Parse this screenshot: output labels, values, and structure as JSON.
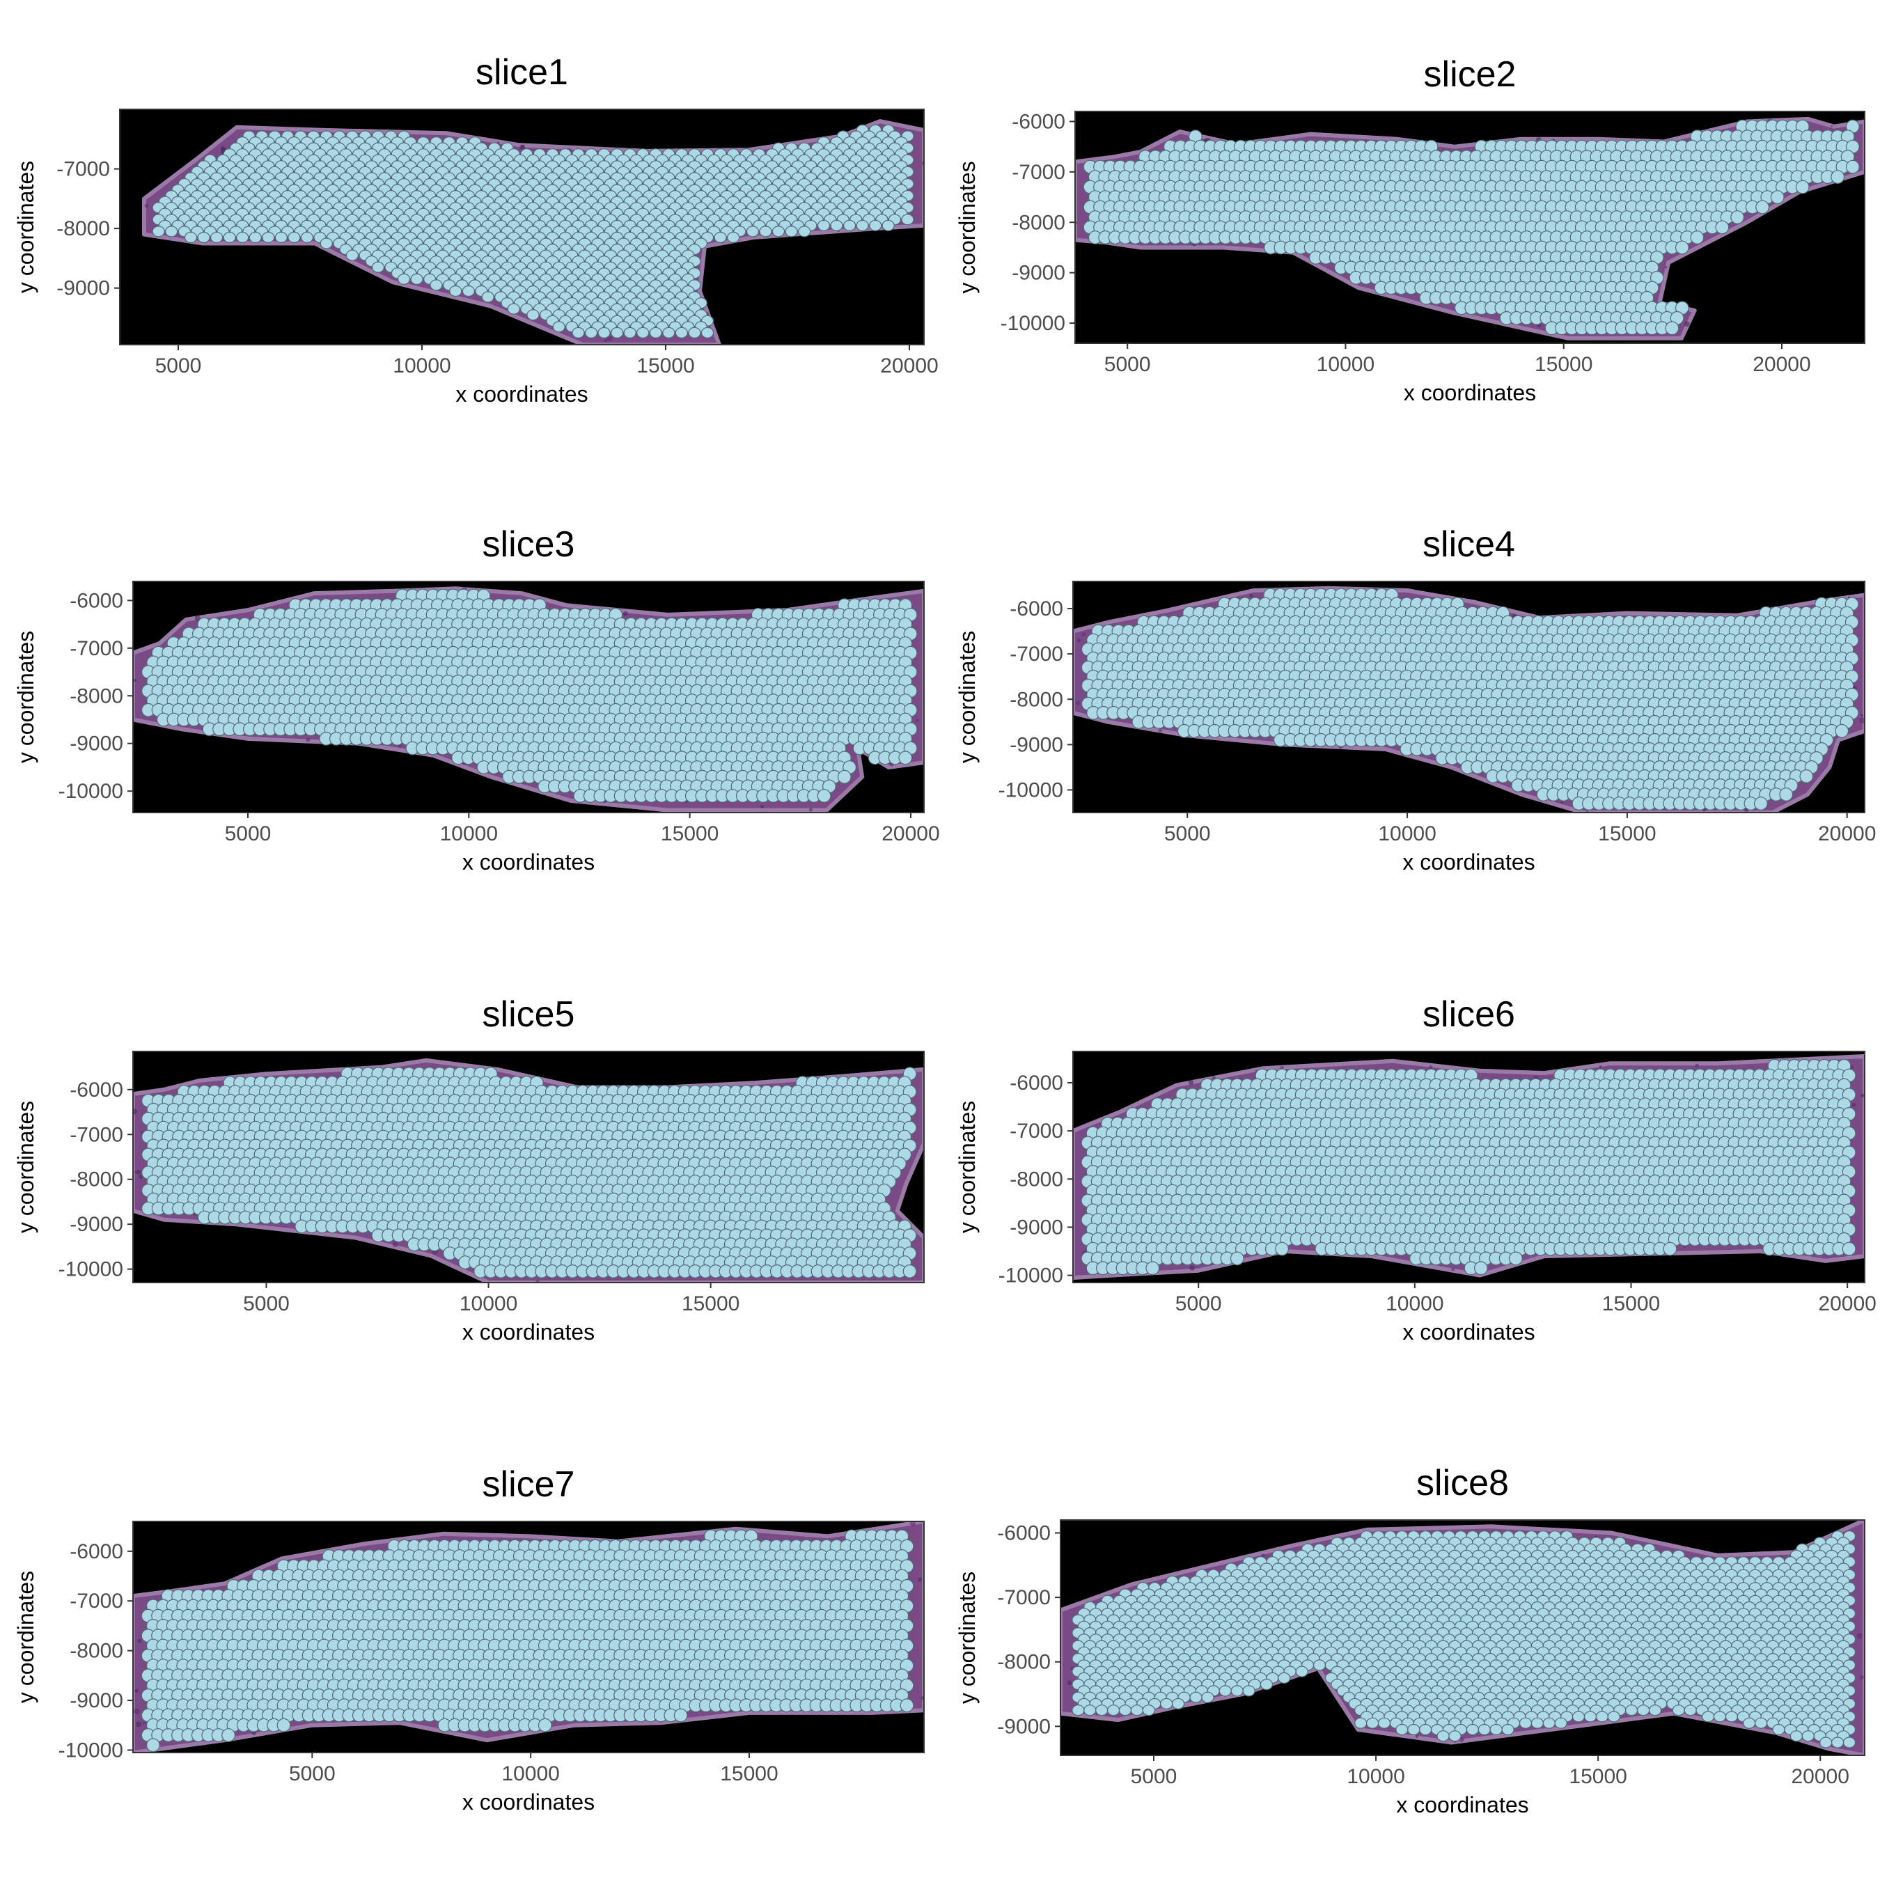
{
  "figure": {
    "background": "#ffffff",
    "panel_background": "#000000",
    "tissue_colors": [
      "#5b2d6e",
      "#7a4a86",
      "#9c7aa8",
      "#4a2a5c"
    ],
    "spot_fill": "#add8e6",
    "spot_stroke": "#4f6b75"
  },
  "chart_data": [
    {
      "type": "scatter",
      "title": "slice1",
      "xlabel": "x coordinates",
      "ylabel": "y coordinates",
      "xlim": [
        3800,
        20300
      ],
      "ylim": [
        -9950,
        -6000
      ],
      "xticks": [
        5000,
        10000,
        15000,
        20000
      ],
      "yticks": [
        -9000,
        -8000,
        -7000
      ],
      "grid": false,
      "legend": "none",
      "spot_pattern": "rows",
      "outline": [
        [
          4300,
          -7500
        ],
        [
          5400,
          -6820
        ],
        [
          6200,
          -6300
        ],
        [
          8000,
          -6350
        ],
        [
          10500,
          -6400
        ],
        [
          12000,
          -6600
        ],
        [
          14600,
          -6700
        ],
        [
          16700,
          -6680
        ],
        [
          18600,
          -6450
        ],
        [
          19400,
          -6200
        ],
        [
          20300,
          -6350
        ],
        [
          20300,
          -7950
        ],
        [
          19300,
          -8000
        ],
        [
          16800,
          -8150
        ],
        [
          15800,
          -8300
        ],
        [
          15700,
          -9050
        ],
        [
          16100,
          -9950
        ],
        [
          13300,
          -9950
        ],
        [
          11400,
          -9300
        ],
        [
          9400,
          -8900
        ],
        [
          7800,
          -8250
        ],
        [
          5500,
          -8250
        ],
        [
          4300,
          -8100
        ]
      ]
    },
    {
      "type": "scatter",
      "title": "slice2",
      "xlabel": "x coordinates",
      "ylabel": "y coordinates",
      "xlim": [
        3800,
        21900
      ],
      "ylim": [
        -10400,
        -5800
      ],
      "xticks": [
        5000,
        10000,
        15000,
        20000
      ],
      "yticks": [
        -10000,
        -9000,
        -8000,
        -7000,
        -6000
      ],
      "grid": false,
      "legend": "none",
      "spot_pattern": "hex",
      "outline": [
        [
          3800,
          -6800
        ],
        [
          4700,
          -6700
        ],
        [
          5300,
          -6600
        ],
        [
          6200,
          -6200
        ],
        [
          7500,
          -6450
        ],
        [
          9200,
          -6250
        ],
        [
          11200,
          -6350
        ],
        [
          12500,
          -6500
        ],
        [
          14000,
          -6350
        ],
        [
          15800,
          -6350
        ],
        [
          17300,
          -6400
        ],
        [
          19200,
          -6000
        ],
        [
          20600,
          -5950
        ],
        [
          21200,
          -6100
        ],
        [
          21900,
          -6000
        ],
        [
          21900,
          -7000
        ],
        [
          20400,
          -7400
        ],
        [
          19200,
          -8000
        ],
        [
          17400,
          -8800
        ],
        [
          17200,
          -9600
        ],
        [
          18000,
          -9750
        ],
        [
          17700,
          -10300
        ],
        [
          15100,
          -10300
        ],
        [
          12500,
          -9800
        ],
        [
          10300,
          -9300
        ],
        [
          8800,
          -8600
        ],
        [
          7200,
          -8500
        ],
        [
          5300,
          -8500
        ],
        [
          4500,
          -8400
        ],
        [
          3800,
          -8350
        ]
      ]
    },
    {
      "type": "scatter",
      "title": "slice3",
      "xlabel": "x coordinates",
      "ylabel": "y coordinates",
      "xlim": [
        2400,
        20300
      ],
      "ylim": [
        -10450,
        -5600
      ],
      "xticks": [
        5000,
        10000,
        15000,
        20000
      ],
      "yticks": [
        -10000,
        -9000,
        -8000,
        -7000,
        -6000
      ],
      "grid": false,
      "legend": "none",
      "spot_pattern": "hex",
      "outline": [
        [
          2400,
          -7100
        ],
        [
          3000,
          -6900
        ],
        [
          3600,
          -6400
        ],
        [
          5000,
          -6200
        ],
        [
          6500,
          -5850
        ],
        [
          8300,
          -5800
        ],
        [
          9700,
          -5750
        ],
        [
          11200,
          -5850
        ],
        [
          12200,
          -6100
        ],
        [
          14500,
          -6300
        ],
        [
          17200,
          -6200
        ],
        [
          19100,
          -5950
        ],
        [
          20300,
          -5800
        ],
        [
          20300,
          -9400
        ],
        [
          19500,
          -9500
        ],
        [
          18800,
          -9100
        ],
        [
          18900,
          -9700
        ],
        [
          18100,
          -10400
        ],
        [
          14500,
          -10400
        ],
        [
          12300,
          -10200
        ],
        [
          10500,
          -9700
        ],
        [
          9200,
          -9250
        ],
        [
          7500,
          -9000
        ],
        [
          5000,
          -8900
        ],
        [
          3500,
          -8700
        ],
        [
          2400,
          -8500
        ]
      ]
    },
    {
      "type": "scatter",
      "title": "slice4",
      "xlabel": "x coordinates",
      "ylabel": "y coordinates",
      "xlim": [
        2400,
        20400
      ],
      "ylim": [
        -10500,
        -5400
      ],
      "xticks": [
        5000,
        10000,
        15000,
        20000
      ],
      "yticks": [
        -10000,
        -9000,
        -8000,
        -7000,
        -6000
      ],
      "grid": false,
      "legend": "none",
      "spot_pattern": "hex",
      "outline": [
        [
          2400,
          -6500
        ],
        [
          3200,
          -6300
        ],
        [
          4500,
          -6050
        ],
        [
          6500,
          -5600
        ],
        [
          8200,
          -5550
        ],
        [
          10000,
          -5600
        ],
        [
          11500,
          -5850
        ],
        [
          13000,
          -6200
        ],
        [
          15000,
          -6100
        ],
        [
          17500,
          -6150
        ],
        [
          19300,
          -5850
        ],
        [
          20400,
          -5700
        ],
        [
          20400,
          -8700
        ],
        [
          19800,
          -8900
        ],
        [
          19600,
          -9500
        ],
        [
          19100,
          -10100
        ],
        [
          18300,
          -10500
        ],
        [
          14000,
          -10500
        ],
        [
          12600,
          -10100
        ],
        [
          11000,
          -9500
        ],
        [
          9500,
          -9100
        ],
        [
          7200,
          -9000
        ],
        [
          5000,
          -8800
        ],
        [
          3200,
          -8500
        ],
        [
          2400,
          -8300
        ]
      ]
    },
    {
      "type": "scatter",
      "title": "slice5",
      "xlabel": "x coordinates",
      "ylabel": "y coordinates",
      "xlim": [
        2000,
        19800
      ],
      "ylim": [
        -10300,
        -5150
      ],
      "xticks": [
        5000,
        10000,
        15000
      ],
      "yticks": [
        -10000,
        -9000,
        -8000,
        -7000,
        -6000
      ],
      "grid": false,
      "legend": "none",
      "spot_pattern": "hex",
      "outline": [
        [
          2000,
          -6100
        ],
        [
          2700,
          -6000
        ],
        [
          3500,
          -5800
        ],
        [
          5000,
          -5650
        ],
        [
          7600,
          -5500
        ],
        [
          8600,
          -5350
        ],
        [
          10200,
          -5550
        ],
        [
          12000,
          -5950
        ],
        [
          14000,
          -5950
        ],
        [
          16000,
          -5850
        ],
        [
          18000,
          -5700
        ],
        [
          19800,
          -5550
        ],
        [
          19800,
          -7200
        ],
        [
          19400,
          -8100
        ],
        [
          19200,
          -8700
        ],
        [
          19800,
          -9300
        ],
        [
          19800,
          -10300
        ],
        [
          10000,
          -10300
        ],
        [
          8700,
          -9700
        ],
        [
          7000,
          -9300
        ],
        [
          4300,
          -9000
        ],
        [
          2700,
          -8900
        ],
        [
          2000,
          -8700
        ]
      ]
    },
    {
      "type": "scatter",
      "title": "slice6",
      "xlabel": "x coordinates",
      "ylabel": "y coordinates",
      "xlim": [
        2100,
        20400
      ],
      "ylim": [
        -10150,
        -5350
      ],
      "xticks": [
        5000,
        10000,
        15000,
        20000
      ],
      "yticks": [
        -10000,
        -9000,
        -8000,
        -7000,
        -6000
      ],
      "grid": false,
      "legend": "none",
      "spot_pattern": "hex",
      "outline": [
        [
          2100,
          -7000
        ],
        [
          3200,
          -6600
        ],
        [
          4500,
          -6050
        ],
        [
          6500,
          -5700
        ],
        [
          9500,
          -5550
        ],
        [
          11500,
          -5750
        ],
        [
          13000,
          -5800
        ],
        [
          14500,
          -5600
        ],
        [
          17000,
          -5600
        ],
        [
          20400,
          -5450
        ],
        [
          20400,
          -9600
        ],
        [
          19500,
          -9700
        ],
        [
          18000,
          -9500
        ],
        [
          13000,
          -9600
        ],
        [
          11500,
          -10000
        ],
        [
          9000,
          -9600
        ],
        [
          7000,
          -9500
        ],
        [
          5000,
          -9900
        ],
        [
          3000,
          -10000
        ],
        [
          2100,
          -10050
        ]
      ]
    },
    {
      "type": "scatter",
      "title": "slice7",
      "xlabel": "x coordinates",
      "ylabel": "y coordinates",
      "xlim": [
        900,
        19000
      ],
      "ylim": [
        -10050,
        -5400
      ],
      "xticks": [
        5000,
        10000,
        15000
      ],
      "yticks": [
        -10000,
        -9000,
        -8000,
        -7000,
        -6000
      ],
      "grid": false,
      "legend": "none",
      "spot_pattern": "hex",
      "outline": [
        [
          900,
          -6900
        ],
        [
          1800,
          -6800
        ],
        [
          3000,
          -6650
        ],
        [
          4300,
          -6150
        ],
        [
          6200,
          -5850
        ],
        [
          8000,
          -5650
        ],
        [
          10000,
          -5700
        ],
        [
          12000,
          -5800
        ],
        [
          14700,
          -5550
        ],
        [
          16800,
          -5700
        ],
        [
          19000,
          -5400
        ],
        [
          19000,
          -9200
        ],
        [
          17800,
          -9250
        ],
        [
          15000,
          -9250
        ],
        [
          13000,
          -9450
        ],
        [
          11000,
          -9500
        ],
        [
          9000,
          -9800
        ],
        [
          7000,
          -9450
        ],
        [
          5000,
          -9500
        ],
        [
          3000,
          -9800
        ],
        [
          900,
          -10050
        ]
      ]
    },
    {
      "type": "scatter",
      "title": "slice8",
      "xlabel": "x coordinates",
      "ylabel": "y coordinates",
      "xlim": [
        2900,
        21000
      ],
      "ylim": [
        -9450,
        -5800
      ],
      "xticks": [
        5000,
        10000,
        15000,
        20000
      ],
      "yticks": [
        -9000,
        -8000,
        -7000,
        -6000
      ],
      "grid": false,
      "legend": "none",
      "spot_pattern": "rows",
      "outline": [
        [
          2900,
          -7200
        ],
        [
          4500,
          -6800
        ],
        [
          6300,
          -6500
        ],
        [
          8100,
          -6200
        ],
        [
          9800,
          -5950
        ],
        [
          12600,
          -5900
        ],
        [
          15300,
          -6000
        ],
        [
          17700,
          -6350
        ],
        [
          19400,
          -6300
        ],
        [
          20200,
          -6050
        ],
        [
          21000,
          -5800
        ],
        [
          21000,
          -9450
        ],
        [
          20200,
          -9350
        ],
        [
          19000,
          -9100
        ],
        [
          16700,
          -8800
        ],
        [
          14500,
          -9000
        ],
        [
          11700,
          -9250
        ],
        [
          9600,
          -9050
        ],
        [
          8700,
          -8100
        ],
        [
          7000,
          -8500
        ],
        [
          5500,
          -8700
        ],
        [
          4200,
          -8900
        ],
        [
          2900,
          -8800
        ]
      ]
    }
  ]
}
